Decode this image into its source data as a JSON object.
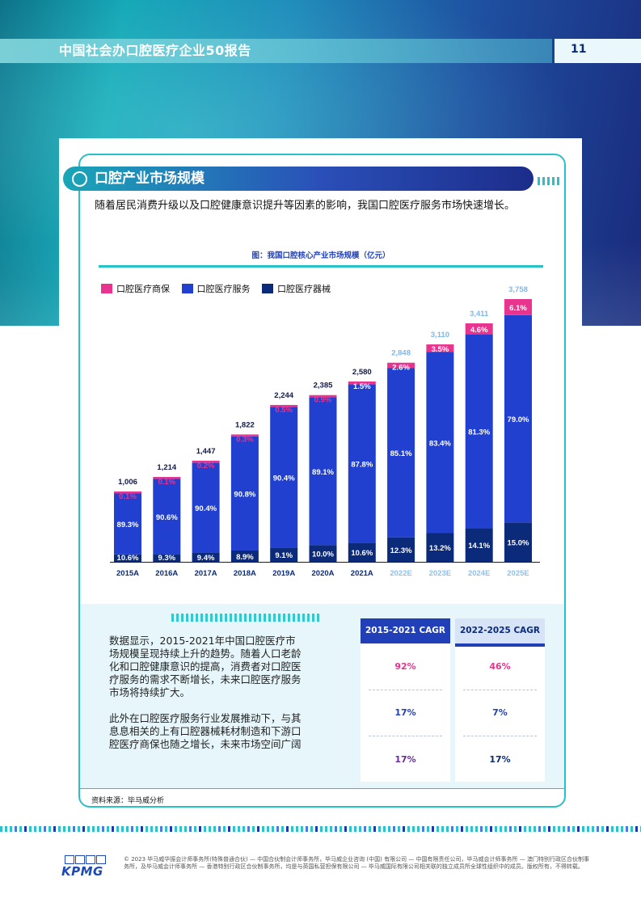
{
  "header": {
    "title": "中国社会办口腔医疗企业50报告",
    "page_number": "11"
  },
  "section": {
    "title": "口腔产业市场规模"
  },
  "intro": "随着居民消费升级以及口腔健康意识提升等因素的影响，我国口腔医疗服务市场快速增长。",
  "chart_data": {
    "type": "bar",
    "title": "图：我国口腔核心产业市场规模（亿元）",
    "categories": [
      "2015A",
      "2016A",
      "2017A",
      "2018A",
      "2019A",
      "2020A",
      "2021A",
      "2022E",
      "2023E",
      "2024E",
      "2025E"
    ],
    "totals": [
      1006,
      1214,
      1447,
      1822,
      2244,
      2385,
      2580,
      2848,
      3110,
      3411,
      3758
    ],
    "total_labels": [
      "1,006",
      "1,214",
      "1,447",
      "1,822",
      "2,244",
      "2,385",
      "2,580",
      "2,848",
      "3,110",
      "3,411",
      "3,758"
    ],
    "series": [
      {
        "name": "口腔医疗器械",
        "color": "#0c2a7a",
        "values": [
          10.6,
          9.3,
          9.4,
          8.9,
          9.1,
          10.0,
          10.6,
          12.3,
          13.2,
          14.1,
          15.0
        ],
        "labels": [
          "10.6%",
          "9.3%",
          "9.4%",
          "8.9%",
          "9.1%",
          "10.0%",
          "10.6%",
          "12.3%",
          "13.2%",
          "14.1%",
          "15.0%"
        ]
      },
      {
        "name": "口腔医疗服务",
        "color": "#2140d0",
        "values": [
          89.3,
          90.6,
          90.4,
          90.8,
          90.4,
          89.1,
          87.8,
          85.1,
          83.4,
          81.3,
          79.0
        ],
        "labels": [
          "89.3%",
          "90.6%",
          "90.4%",
          "90.8%",
          "90.4%",
          "89.1%",
          "87.8%",
          "85.1%",
          "83.4%",
          "81.3%",
          "79.0%"
        ]
      },
      {
        "name": "口腔医疗商保",
        "color": "#e8348f",
        "values": [
          0.1,
          0.1,
          0.2,
          0.3,
          0.5,
          0.9,
          1.5,
          2.6,
          3.5,
          4.6,
          6.1
        ],
        "labels": [
          "0.1%",
          "0.1%",
          "0.2%",
          "0.3%",
          "0.5%",
          "0.9%",
          "1.5%",
          "2.6%",
          "3.5%",
          "4.6%",
          "6.1%"
        ]
      }
    ],
    "legend_order": [
      "口腔医疗商保",
      "口腔医疗服务",
      "口腔医疗器械"
    ],
    "forecast_from_index": 7,
    "ylim": [
      0,
      3758
    ],
    "legend": "top-left",
    "grid": false
  },
  "summary": [
    "数据显示，2015-2021年中国口腔医疗市场规模呈现持续上升的趋势。随着人口老龄化和口腔健康意识的提高，消费者对口腔医疗服务的需求不断增长，未来口腔医疗服务市场将持续扩大。",
    "此外在口腔医疗服务行业发展推动下，与其息息相关的上有口腔器械耗材制造和下游口腔医疗商保也随之增长，未来市场空间广阔"
  ],
  "cagr": {
    "col1_header": "2015-2021 CAGR",
    "col2_header": "2022-2025 CAGR",
    "col1": [
      "92%",
      "17%",
      "17%"
    ],
    "col2": [
      "46%",
      "7%",
      "17%"
    ],
    "row_colors": [
      "#e8348f",
      "#2140b8",
      "#6a2da0"
    ]
  },
  "source": "资料来源：毕马威分析",
  "footer": {
    "logo": "KPMG",
    "legal": "© 2023 毕马威华振会计师事务所(特殊普通合伙) — 中国合伙制会计师事务所，毕马威企业咨询 (中国) 有限公司 — 中国有限责任公司，毕马威会计师事务所 — 澳门特别行政区合伙制事务所，及毕马威会计师事务所 — 香港特别行政区合伙制事务所，均是与英国私营担保有限公司 — 毕马威国际有限公司相关联的独立成员所全球性组织中的成员。版权所有，不得转载。"
  }
}
